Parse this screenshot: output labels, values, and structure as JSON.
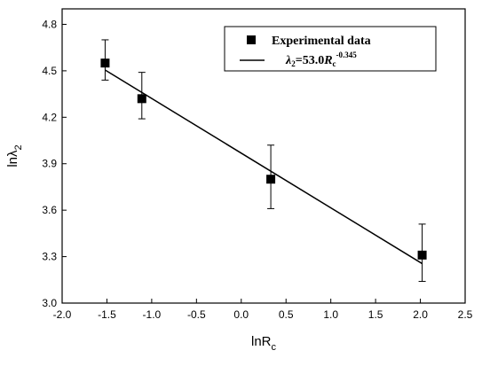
{
  "chart_data": {
    "type": "scatter",
    "xlabel": "lnR",
    "xlabel_sub": "c",
    "ylabel": "lnλ",
    "ylabel_sub": "2",
    "xlim": [
      -2.0,
      2.5
    ],
    "ylim": [
      3.0,
      4.9
    ],
    "x_ticks": [
      "-2.0",
      "-1.5",
      "-1.0",
      "-0.5",
      "0.0",
      "0.5",
      "1.0",
      "1.5",
      "2.0",
      "2.5"
    ],
    "y_ticks": [
      "3.0",
      "3.3",
      "3.6",
      "3.9",
      "4.2",
      "4.5",
      "4.8"
    ],
    "grid": false,
    "legend_position": "top-right",
    "series": [
      {
        "name": "Experimental data",
        "marker": "square",
        "points": [
          {
            "x": -1.52,
            "y": 4.55,
            "err_low": 4.44,
            "err_high": 4.7
          },
          {
            "x": -1.11,
            "y": 4.32,
            "err_low": 4.19,
            "err_high": 4.49
          },
          {
            "x": 0.33,
            "y": 3.8,
            "err_low": 3.61,
            "err_high": 4.02
          },
          {
            "x": 2.02,
            "y": 3.31,
            "err_low": 3.14,
            "err_high": 3.51
          }
        ]
      }
    ],
    "fit": {
      "label_prefix": "λ",
      "label_sub": "2",
      "label_mid": "=53.0",
      "label_var": "R",
      "label_var_sub": "c",
      "label_exp": "-0.345",
      "x_start": -1.52,
      "y_start": 4.505,
      "x_end": 2.02,
      "y_end": 3.255
    }
  }
}
